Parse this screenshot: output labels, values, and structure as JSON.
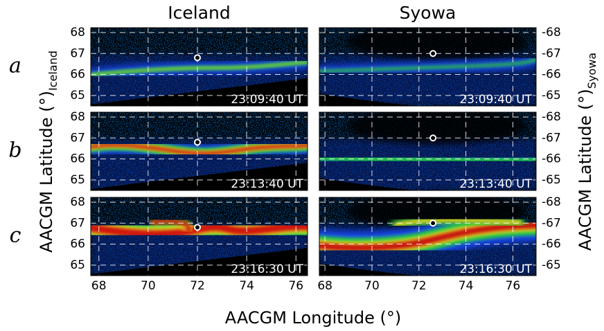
{
  "columns": [
    {
      "title": "Iceland",
      "xlim": [
        67.67,
        76.47
      ],
      "ylim": [
        64.5,
        68.23
      ],
      "xticks": [
        68,
        70,
        72,
        74,
        76
      ],
      "yticks": [
        65,
        66,
        67,
        68
      ],
      "station": {
        "lon": 72,
        "lat": 66.8
      }
    },
    {
      "title": "Syowa",
      "xlim": [
        67.76,
        76.99
      ],
      "ylim": [
        -64.5,
        -68.23
      ],
      "xticks": [
        68,
        70,
        72,
        74,
        76
      ],
      "yticks": [
        -65,
        -66,
        -67,
        -68
      ],
      "station": {
        "lon": 72.6,
        "lat": -67
      }
    }
  ],
  "rows": [
    {
      "label": "a",
      "time": "23:09:40 UT"
    },
    {
      "label": "b",
      "time": "23:13:40 UT"
    },
    {
      "label": "c",
      "time": "23:16:30 UT"
    }
  ],
  "y_label_left": {
    "text": "AACGM Latitude (°)",
    "subscript": "Iceland"
  },
  "y_label_right": {
    "text": "AACGM Latitude (°)",
    "subscript": "Syowa"
  },
  "x_label": "AACGM Longitude (°)"
}
